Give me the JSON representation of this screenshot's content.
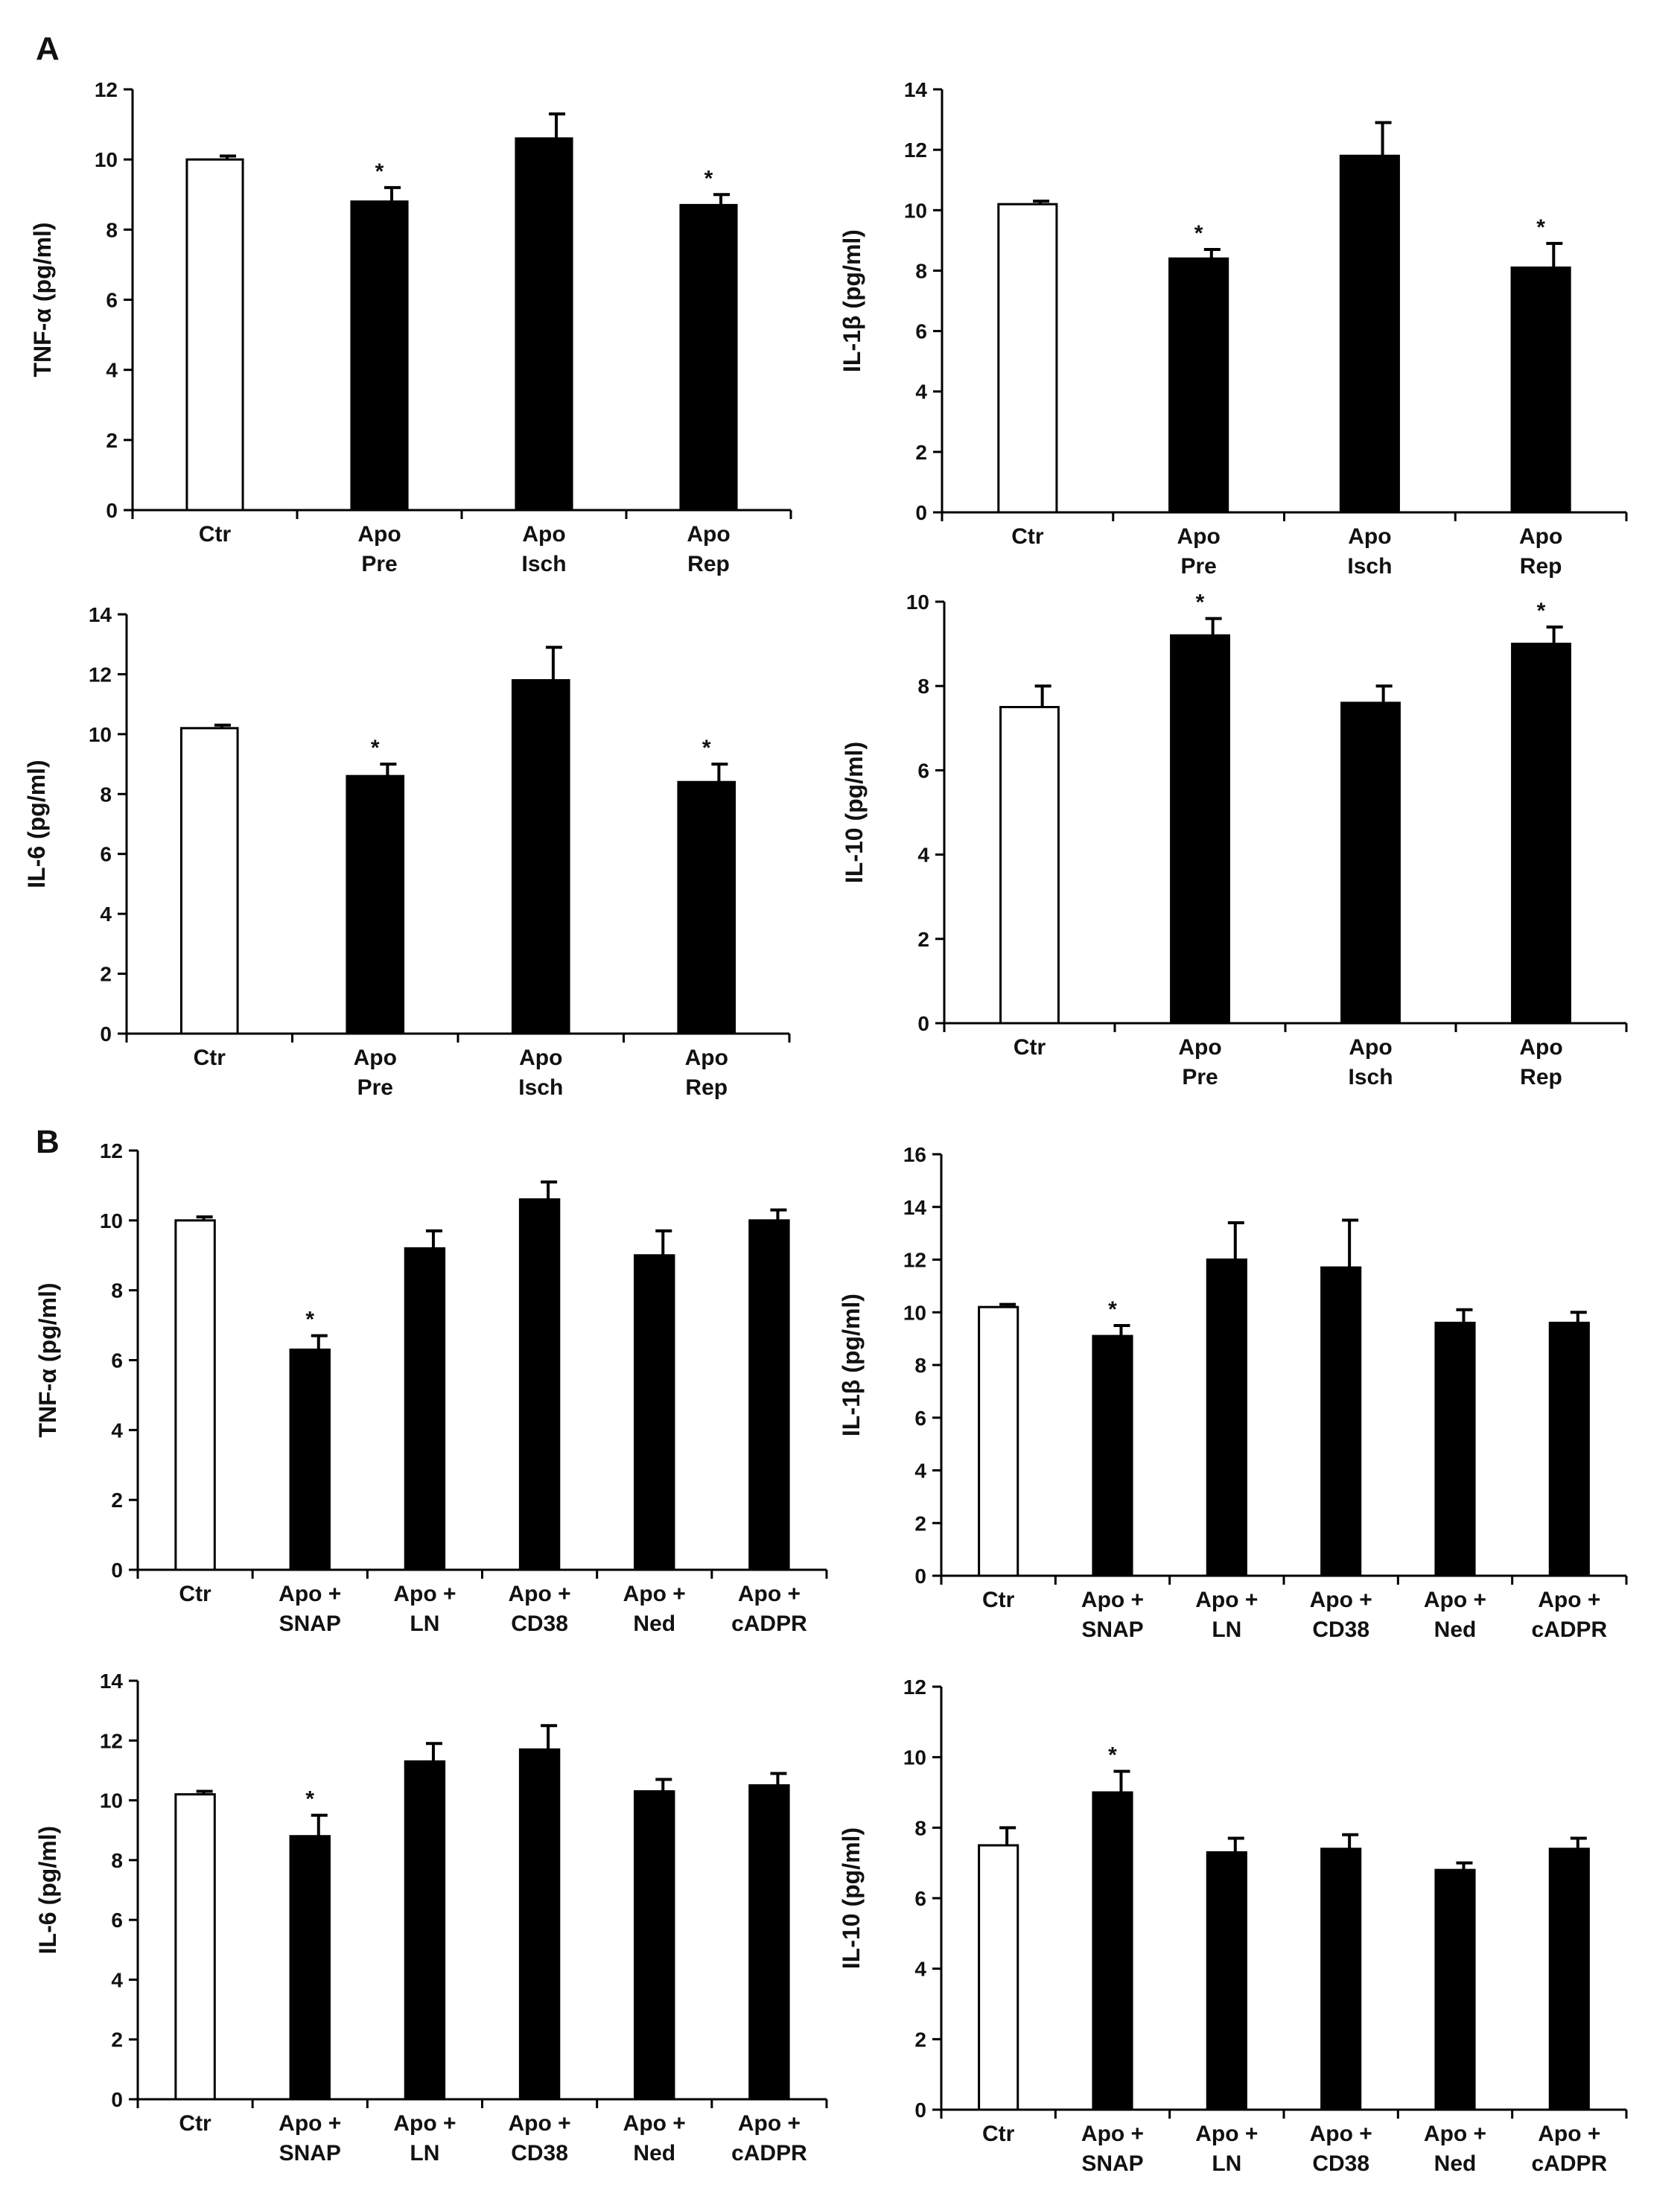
{
  "panel_labels": {
    "A": "A",
    "B": "B"
  },
  "colors": {
    "control": "#ffffff",
    "treatment": "#000000",
    "axis": "#000000"
  },
  "chart_data": [
    {
      "type": "bar",
      "panel": "A",
      "ylabel": "TNF-α (pg/ml)",
      "ylim": [
        0,
        12
      ],
      "yticks": [
        0,
        2,
        4,
        6,
        8,
        10,
        12
      ],
      "categories": [
        [
          "Ctr"
        ],
        [
          "Apo",
          "Pre"
        ],
        [
          "Apo",
          "Isch"
        ],
        [
          "Apo",
          "Rep"
        ]
      ],
      "values": [
        10.0,
        8.8,
        10.6,
        8.7
      ],
      "errors": [
        0.1,
        0.4,
        0.7,
        0.3
      ],
      "significant": [
        false,
        true,
        false,
        true
      ],
      "star": "*",
      "control_index": 0
    },
    {
      "type": "bar",
      "panel": "A",
      "ylabel": "IL-1β (pg/ml)",
      "ylim": [
        0,
        14
      ],
      "yticks": [
        0,
        2,
        4,
        6,
        8,
        10,
        12,
        14
      ],
      "categories": [
        [
          "Ctr"
        ],
        [
          "Apo",
          "Pre"
        ],
        [
          "Apo",
          "Isch"
        ],
        [
          "Apo",
          "Rep"
        ]
      ],
      "values": [
        10.2,
        8.4,
        11.8,
        8.1
      ],
      "errors": [
        0.1,
        0.3,
        1.1,
        0.8
      ],
      "significant": [
        false,
        true,
        false,
        true
      ],
      "star": "*",
      "control_index": 0
    },
    {
      "type": "bar",
      "panel": "A",
      "ylabel": "IL-6 (pg/ml)",
      "ylim": [
        0,
        14
      ],
      "yticks": [
        0,
        2,
        4,
        6,
        8,
        10,
        12,
        14
      ],
      "categories": [
        [
          "Ctr"
        ],
        [
          "Apo",
          "Pre"
        ],
        [
          "Apo",
          "Isch"
        ],
        [
          "Apo",
          "Rep"
        ]
      ],
      "values": [
        10.2,
        8.6,
        11.8,
        8.4
      ],
      "errors": [
        0.1,
        0.4,
        1.1,
        0.6
      ],
      "significant": [
        false,
        true,
        false,
        true
      ],
      "star": "*",
      "control_index": 0
    },
    {
      "type": "bar",
      "panel": "A",
      "ylabel": "IL-10 (pg/ml)",
      "ylim": [
        0,
        10
      ],
      "yticks": [
        0,
        2,
        4,
        6,
        8,
        10
      ],
      "categories": [
        [
          "Ctr"
        ],
        [
          "Apo",
          "Pre"
        ],
        [
          "Apo",
          "Isch"
        ],
        [
          "Apo",
          "Rep"
        ]
      ],
      "values": [
        7.5,
        9.2,
        7.6,
        9.0
      ],
      "errors": [
        0.5,
        0.4,
        0.4,
        0.4
      ],
      "significant": [
        false,
        true,
        false,
        true
      ],
      "star": "*",
      "control_index": 0
    },
    {
      "type": "bar",
      "panel": "B",
      "ylabel": "TNF-α (pg/ml)",
      "ylim": [
        0,
        12
      ],
      "yticks": [
        0,
        2,
        4,
        6,
        8,
        10,
        12
      ],
      "categories": [
        [
          "Ctr"
        ],
        [
          "Apo +",
          "SNAP"
        ],
        [
          "Apo +",
          "LN"
        ],
        [
          "Apo +",
          "CD38"
        ],
        [
          "Apo +",
          "Ned"
        ],
        [
          "Apo +",
          "cADPR"
        ]
      ],
      "values": [
        10.0,
        6.3,
        9.2,
        10.6,
        9.0,
        10.0
      ],
      "errors": [
        0.1,
        0.4,
        0.5,
        0.5,
        0.7,
        0.3
      ],
      "significant": [
        false,
        true,
        false,
        false,
        false,
        false
      ],
      "star": "*",
      "control_index": 0
    },
    {
      "type": "bar",
      "panel": "B",
      "ylabel": "IL-1β (pg/ml)",
      "ylim": [
        0,
        16
      ],
      "yticks": [
        0,
        2,
        4,
        6,
        8,
        10,
        12,
        14,
        16
      ],
      "categories": [
        [
          "Ctr"
        ],
        [
          "Apo +",
          "SNAP"
        ],
        [
          "Apo +",
          "LN"
        ],
        [
          "Apo +",
          "CD38"
        ],
        [
          "Apo +",
          "Ned"
        ],
        [
          "Apo +",
          "cADPR"
        ]
      ],
      "values": [
        10.2,
        9.1,
        12.0,
        11.7,
        9.6,
        9.6
      ],
      "errors": [
        0.1,
        0.4,
        1.4,
        1.8,
        0.5,
        0.4
      ],
      "significant": [
        false,
        true,
        false,
        false,
        false,
        false
      ],
      "star": "*",
      "control_index": 0
    },
    {
      "type": "bar",
      "panel": "B",
      "ylabel": "IL-6 (pg/ml)",
      "ylim": [
        0,
        14
      ],
      "yticks": [
        0,
        2,
        4,
        6,
        8,
        10,
        12,
        14
      ],
      "categories": [
        [
          "Ctr"
        ],
        [
          "Apo +",
          "SNAP"
        ],
        [
          "Apo +",
          "LN"
        ],
        [
          "Apo +",
          "CD38"
        ],
        [
          "Apo +",
          "Ned"
        ],
        [
          "Apo +",
          "cADPR"
        ]
      ],
      "values": [
        10.2,
        8.8,
        11.3,
        11.7,
        10.3,
        10.5
      ],
      "errors": [
        0.1,
        0.7,
        0.6,
        0.8,
        0.4,
        0.4
      ],
      "significant": [
        false,
        true,
        false,
        false,
        false,
        false
      ],
      "star": "*",
      "control_index": 0
    },
    {
      "type": "bar",
      "panel": "B",
      "ylabel": "IL-10 (pg/ml)",
      "ylim": [
        0,
        12
      ],
      "yticks": [
        0,
        2,
        4,
        6,
        8,
        10,
        12
      ],
      "categories": [
        [
          "Ctr"
        ],
        [
          "Apo +",
          "SNAP"
        ],
        [
          "Apo +",
          "LN"
        ],
        [
          "Apo +",
          "CD38"
        ],
        [
          "Apo +",
          "Ned"
        ],
        [
          "Apo +",
          "cADPR"
        ]
      ],
      "values": [
        7.5,
        9.0,
        7.3,
        7.4,
        6.8,
        7.4
      ],
      "errors": [
        0.5,
        0.6,
        0.4,
        0.4,
        0.2,
        0.3
      ],
      "significant": [
        false,
        true,
        false,
        false,
        false,
        false
      ],
      "star": "*",
      "control_index": 0
    }
  ]
}
